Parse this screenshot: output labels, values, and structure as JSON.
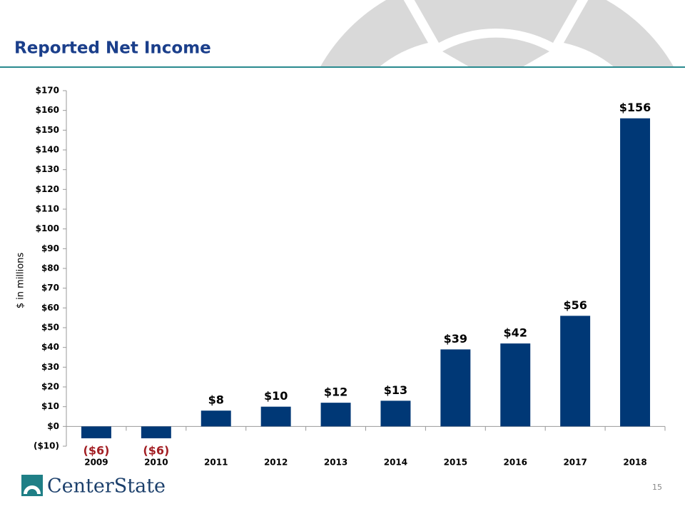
{
  "title": "Reported Net Income",
  "logo": "CenterState",
  "page_number": "15",
  "chart_data": {
    "type": "bar",
    "ylabel": "$ in millions",
    "categories": [
      "2009",
      "2010",
      "2011",
      "2012",
      "2013",
      "2014",
      "2015",
      "2016",
      "2017",
      "2018"
    ],
    "values": [
      -6,
      -6,
      8,
      10,
      12,
      13,
      39,
      42,
      56,
      156
    ],
    "value_labels": [
      "($6)",
      "($6)",
      "$8",
      "$10",
      "$12",
      "$13",
      "$39",
      "$42",
      "$56",
      "$156"
    ],
    "color": "#003876",
    "negative_label_color": "#a31f24",
    "ylim": [
      -10,
      170
    ],
    "yticks": [
      {
        "value": -10,
        "label": "($10)"
      },
      {
        "value": 0,
        "label": "$0"
      },
      {
        "value": 10,
        "label": "$10"
      },
      {
        "value": 20,
        "label": "$20"
      },
      {
        "value": 30,
        "label": "$30"
      },
      {
        "value": 40,
        "label": "$40"
      },
      {
        "value": 50,
        "label": "$50"
      },
      {
        "value": 60,
        "label": "$60"
      },
      {
        "value": 70,
        "label": "$70"
      },
      {
        "value": 80,
        "label": "$80"
      },
      {
        "value": 90,
        "label": "$90"
      },
      {
        "value": 100,
        "label": "$100"
      },
      {
        "value": 110,
        "label": "$110"
      },
      {
        "value": 120,
        "label": "$120"
      },
      {
        "value": 130,
        "label": "$130"
      },
      {
        "value": 140,
        "label": "$140"
      },
      {
        "value": 150,
        "label": "$150"
      },
      {
        "value": 160,
        "label": "$160"
      },
      {
        "value": 170,
        "label": "$170"
      }
    ],
    "grid": false
  }
}
